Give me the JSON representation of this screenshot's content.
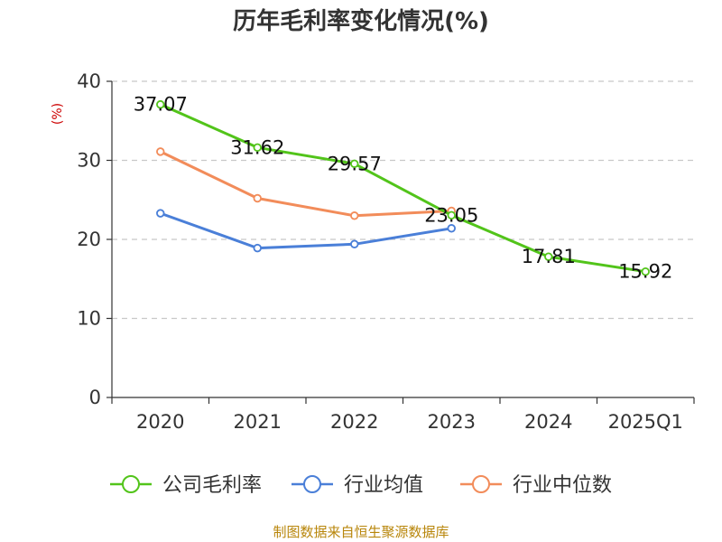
{
  "chart_data": {
    "type": "line",
    "title": "历年毛利率变化情况(%)",
    "ylabel": "(%)",
    "xlabel": "",
    "categories": [
      "2020",
      "2021",
      "2022",
      "2023",
      "2024",
      "2025Q1"
    ],
    "ylim": [
      0,
      40
    ],
    "yticks": [
      "0",
      "10",
      "20",
      "30",
      "40"
    ],
    "grid": true,
    "legend_position": "bottom",
    "series": [
      {
        "name": "公司毛利率",
        "color": "#52c41a",
        "values": [
          37.07,
          31.62,
          29.57,
          23.05,
          17.81,
          15.92
        ],
        "labels": [
          "37.07",
          "31.62",
          "29.57",
          "23.05",
          "17.81",
          "15.92"
        ]
      },
      {
        "name": "行业均值",
        "color": "#4a7fd8",
        "values": [
          23.3,
          18.9,
          19.4,
          21.4,
          null,
          null
        ]
      },
      {
        "name": "行业中位数",
        "color": "#f28c5a",
        "values": [
          31.1,
          25.2,
          23.0,
          23.6,
          null,
          null
        ]
      }
    ],
    "source": "制图数据来自恒生聚源数据库"
  }
}
